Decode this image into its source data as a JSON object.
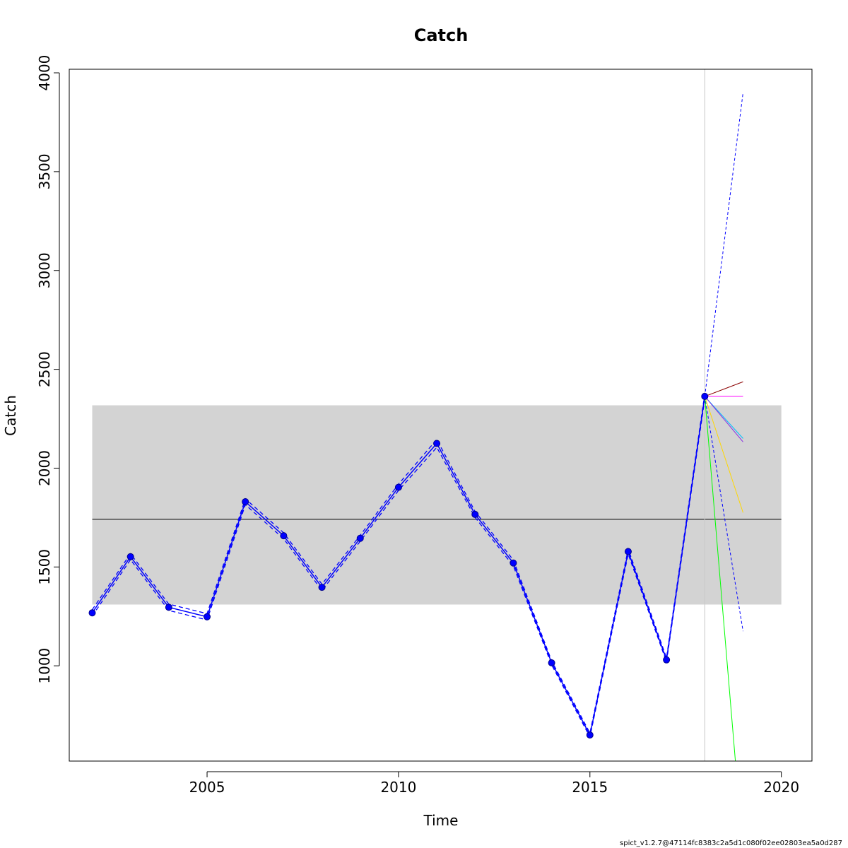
{
  "chart_data": {
    "type": "line",
    "title": "Catch",
    "xlabel": "Time",
    "ylabel": "Catch",
    "footer": "spict_v1.2.7@47114fc8383c2a5d1c080f02ee02803ea5a0d287",
    "xlim": [
      2001.4,
      2020.8
    ],
    "ylim": [
      518,
      4018
    ],
    "xticks": [
      2005,
      2010,
      2015,
      2020
    ],
    "yticks": [
      1000,
      1500,
      2000,
      2500,
      3000,
      3500,
      4000
    ],
    "colors": {
      "series": "#0000ff",
      "band": "#d3d3d3",
      "mean": "#000000",
      "vline": "#c8c8c8"
    },
    "band": {
      "x": [
        2002,
        2020
      ],
      "y": [
        1310,
        2318
      ]
    },
    "mean_line": {
      "x": [
        2002,
        2020
      ],
      "y": 1741
    },
    "vline_x": 2018,
    "observed": {
      "x": [
        2002,
        2003,
        2004,
        2005,
        2006,
        2007,
        2008,
        2009,
        2010,
        2011,
        2012,
        2013,
        2014,
        2015,
        2016,
        2017,
        2018
      ],
      "y": [
        1268,
        1552,
        1296,
        1248,
        1830,
        1658,
        1397,
        1645,
        1903,
        2125,
        1766,
        1520,
        1015,
        650,
        1578,
        1030,
        2363
      ]
    },
    "fitted": {
      "y": [
        1268,
        1552,
        1296,
        1248,
        1830,
        1658,
        1397,
        1645,
        1903,
        2125,
        1766,
        1520,
        1015,
        650,
        1578,
        1030,
        2363
      ],
      "lower": [
        1252,
        1537,
        1280,
        1232,
        1815,
        1643,
        1381,
        1630,
        1887,
        2105,
        1751,
        1505,
        1005,
        640,
        1565,
        1020,
        2350
      ],
      "upper": [
        1284,
        1567,
        1312,
        1264,
        1845,
        1673,
        1413,
        1660,
        1919,
        2145,
        1781,
        1535,
        1025,
        660,
        1591,
        1040,
        2376
      ]
    },
    "projection_ci": {
      "x": [
        2018,
        2019
      ],
      "lower": [
        2363,
        1175
      ],
      "upper": [
        2363,
        3900
      ]
    },
    "scenarios": [
      {
        "color": "#8b0000",
        "x": [
          2018,
          2019
        ],
        "y": [
          2363,
          2437
        ]
      },
      {
        "color": "#ff00ff",
        "x": [
          2018,
          2019
        ],
        "y": [
          2363,
          2363
        ]
      },
      {
        "color": "#00bfff",
        "x": [
          2018,
          2019
        ],
        "y": [
          2363,
          2150
        ]
      },
      {
        "color": "#8a2be2",
        "x": [
          2018,
          2019
        ],
        "y": [
          2363,
          2133
        ]
      },
      {
        "color": "#ffd700",
        "x": [
          2018,
          2019
        ],
        "y": [
          2363,
          1775
        ]
      },
      {
        "color": "#00ff00",
        "x": [
          2018,
          2018.8
        ],
        "y": [
          2363,
          518
        ]
      }
    ]
  }
}
